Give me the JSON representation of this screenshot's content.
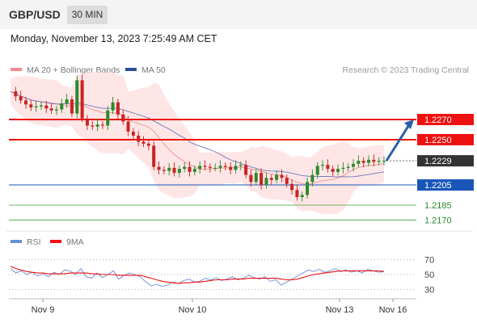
{
  "header": {
    "symbol": "GBP/USD",
    "timeframe": "30 MIN"
  },
  "datetime": "Monday, November 13, 2023 7:25:49 AM CET",
  "legend": {
    "ma20": "MA 20 + Bollinger Bands",
    "ma50": "MA 50",
    "credit": "Research © 2023 Trading Central"
  },
  "rsi_legend": {
    "rsi": "RSI",
    "ma9": "9MA"
  },
  "colors": {
    "resistance": "#ee1111",
    "support": "#1a56b8",
    "current": "#333333",
    "extra_support": "#3c9a3c",
    "ma20_band": "#fddddd",
    "ma20": "#e88888",
    "ma50": "#5566aa",
    "bull": "#2b8a2b",
    "bear": "#cc2222",
    "arrow": "#2a5ea8"
  },
  "chart_data": [
    {
      "type": "candlestick",
      "title": "GBP/USD 30 MIN",
      "y_range": [
        1.216,
        1.231
      ],
      "last_price": 1.2229,
      "levels": [
        {
          "value": 1.227,
          "label": "1.2270",
          "kind": "resistance"
        },
        {
          "value": 1.225,
          "label": "1.2250",
          "kind": "resistance"
        },
        {
          "value": 1.2229,
          "label": "1.2229",
          "kind": "current"
        },
        {
          "value": 1.2205,
          "label": "1.2205",
          "kind": "support"
        },
        {
          "value": 1.2185,
          "label": "1.2185",
          "kind": "extra_support"
        },
        {
          "value": 1.217,
          "label": "1.2170",
          "kind": "extra_support"
        }
      ],
      "forecast": {
        "from": 1.2229,
        "to": 1.227,
        "direction": "up"
      },
      "x_ticks": [
        "Nov 9",
        "Nov 10",
        "Nov 13",
        "Nov 16"
      ],
      "close_path": [
        1.2298,
        1.2293,
        1.2289,
        1.2285,
        1.2282,
        1.2283,
        1.2284,
        1.2281,
        1.2279,
        1.228,
        1.2286,
        1.229,
        1.2276,
        1.2309,
        1.2271,
        1.2264,
        1.2263,
        1.2265,
        1.2264,
        1.2279,
        1.2287,
        1.2275,
        1.2268,
        1.2258,
        1.2254,
        1.2248,
        1.2246,
        1.2244,
        1.2223,
        1.222,
        1.2219,
        1.2222,
        1.2217,
        1.2221,
        1.2223,
        1.2218,
        1.2221,
        1.2224,
        1.2223,
        1.2222,
        1.2222,
        1.2224,
        1.2223,
        1.222,
        1.2224,
        1.2225,
        1.2215,
        1.2208,
        1.2217,
        1.2205,
        1.2212,
        1.221,
        1.2215,
        1.2212,
        1.2206,
        1.22,
        1.2193,
        1.2195,
        1.2208,
        1.2215,
        1.2224,
        1.2225,
        1.2221,
        1.2218,
        1.2221,
        1.2222,
        1.2223,
        1.2226,
        1.2229,
        1.2227,
        1.223,
        1.2228,
        1.2229,
        1.2229
      ]
    },
    {
      "type": "line",
      "title": "RSI",
      "y_ticks": [
        70,
        50,
        30
      ],
      "series": [
        {
          "name": "RSI",
          "values": [
            58,
            52,
            55,
            50,
            53,
            48,
            51,
            47,
            53,
            50,
            56,
            55,
            50,
            58,
            47,
            45,
            52,
            46,
            50,
            55,
            44,
            49,
            52,
            50,
            47,
            40,
            35,
            37,
            34,
            36,
            40,
            38,
            42,
            44,
            40,
            41,
            45,
            43,
            46,
            42,
            44,
            47,
            43,
            45,
            49,
            46,
            44,
            47,
            41,
            43,
            36,
            40,
            44,
            48,
            52,
            56,
            54,
            57,
            53,
            55,
            58,
            54,
            56,
            53,
            55,
            52,
            57,
            55,
            53,
            54
          ]
        },
        {
          "name": "9MA",
          "values": [
            61,
            58,
            56,
            54,
            53,
            52,
            52,
            51,
            51,
            51,
            51,
            52,
            52,
            52,
            52,
            51,
            51,
            50,
            50,
            50,
            49,
            49,
            49,
            49,
            49,
            47,
            45,
            43,
            41,
            40,
            39,
            38,
            39,
            39,
            40,
            40,
            41,
            42,
            43,
            43,
            43,
            44,
            44,
            44,
            45,
            45,
            45,
            45,
            45,
            45,
            44,
            43,
            43,
            44,
            46,
            48,
            50,
            51,
            52,
            53,
            54,
            55,
            55,
            55,
            55,
            55,
            55,
            55,
            55,
            54
          ]
        }
      ]
    }
  ]
}
